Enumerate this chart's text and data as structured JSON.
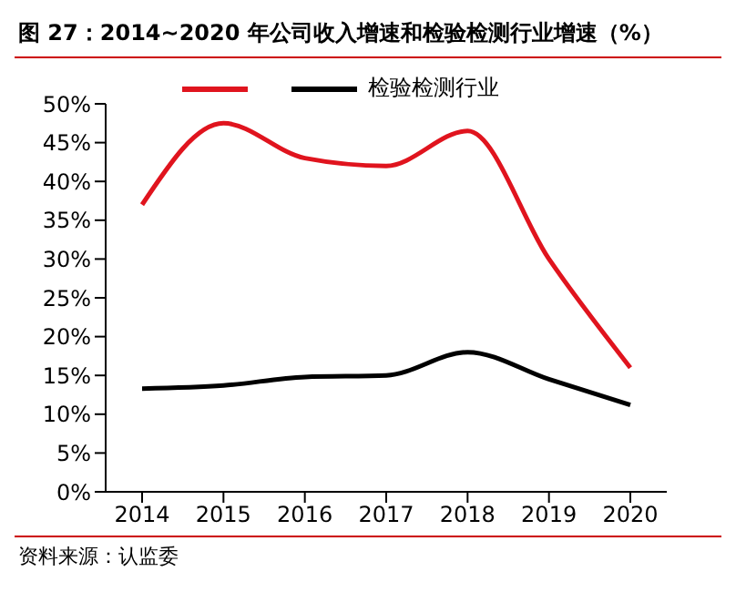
{
  "chart_data": {
    "type": "line",
    "title": "图 27：2014~2020 年公司收入增速和检验检测行业增速（%）",
    "annotations": [
      "资料来源：认监委"
    ],
    "categories": [
      "2014",
      "2015",
      "2016",
      "2017",
      "2018",
      "2019",
      "2020"
    ],
    "series": [
      {
        "color": "#e0141e",
        "values": [
          37,
          47.5,
          43,
          42,
          46.5,
          30,
          16
        ]
      },
      {
        "name": "检验检测行业",
        "color": "#000000",
        "values": [
          13.3,
          13.7,
          14.8,
          15,
          18,
          14.5,
          11.2
        ]
      }
    ],
    "ylim": [
      0,
      50
    ],
    "yticks": [
      {
        "value": 0,
        "label": "0%"
      },
      {
        "value": 5,
        "label": "5%"
      },
      {
        "value": 10,
        "label": "10%"
      },
      {
        "value": 15,
        "label": "15%"
      },
      {
        "value": 20,
        "label": "20%"
      },
      {
        "value": 25,
        "label": "25%"
      },
      {
        "value": 30,
        "label": "30%"
      },
      {
        "value": 35,
        "label": "35%"
      },
      {
        "value": 40,
        "label": "40%"
      },
      {
        "value": 45,
        "label": "45%"
      },
      {
        "value": 50,
        "label": "50%"
      }
    ],
    "grid": false,
    "legend": "top",
    "marker": "none",
    "line_style": "solid"
  }
}
